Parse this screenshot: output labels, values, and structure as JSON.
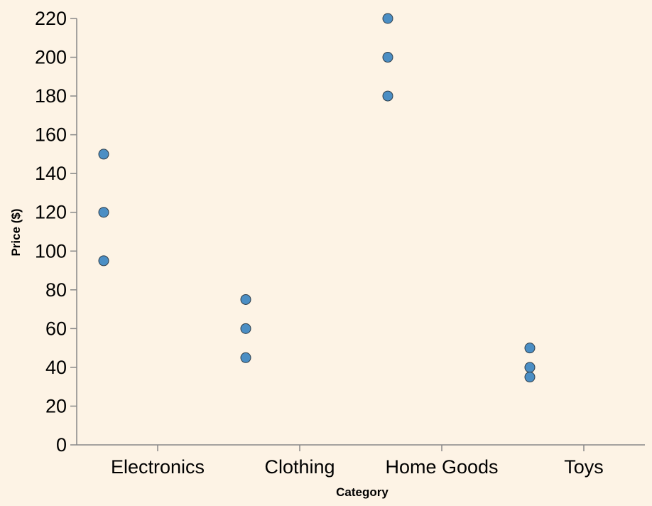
{
  "chart_data": {
    "type": "scatter",
    "xlabel": "Category",
    "ylabel": "Price ($)",
    "categories": [
      "Electronics",
      "Clothing",
      "Home Goods",
      "Toys"
    ],
    "ylim": [
      0,
      220
    ],
    "yticks": [
      0,
      20,
      40,
      60,
      80,
      100,
      120,
      140,
      160,
      180,
      200,
      220
    ],
    "points": [
      {
        "category": "Electronics",
        "value": 150
      },
      {
        "category": "Electronics",
        "value": 120
      },
      {
        "category": "Electronics",
        "value": 95
      },
      {
        "category": "Clothing",
        "value": 75
      },
      {
        "category": "Clothing",
        "value": 60
      },
      {
        "category": "Clothing",
        "value": 45
      },
      {
        "category": "Home Goods",
        "value": 220
      },
      {
        "category": "Home Goods",
        "value": 200
      },
      {
        "category": "Home Goods",
        "value": 180
      },
      {
        "category": "Toys",
        "value": 50
      },
      {
        "category": "Toys",
        "value": 40
      },
      {
        "category": "Toys",
        "value": 35
      }
    ],
    "grid": false,
    "legend": "none",
    "point_color": "#4b8ec4",
    "background": "#fdf3e5"
  }
}
